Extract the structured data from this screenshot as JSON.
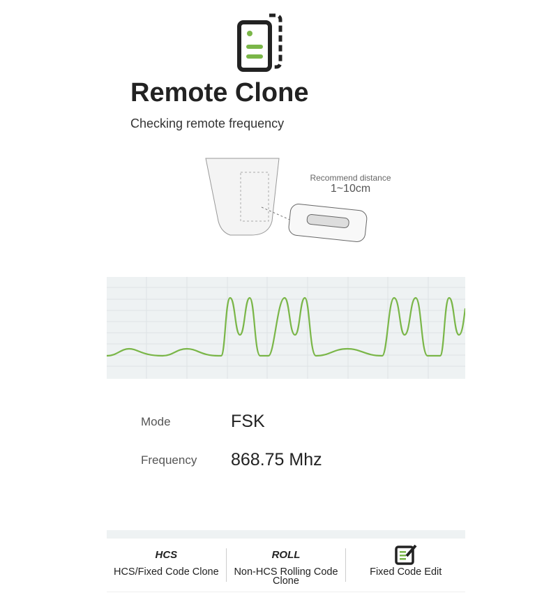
{
  "header": {
    "title": "Remote Clone",
    "subtitle": "Checking remote frequency",
    "icon": "remote-clone-icon"
  },
  "illustration": {
    "recommend_label": "Recommend distance",
    "distance": "1~10cm"
  },
  "signal": {
    "color": "#7ab648"
  },
  "info": {
    "mode_label": "Mode",
    "mode_value": "FSK",
    "frequency_label": "Frequency",
    "frequency_value": "868.75 Mhz"
  },
  "tabs": [
    {
      "icon_text": "HCS",
      "label": "HCS/Fixed Code Clone"
    },
    {
      "icon_text": "ROLL",
      "label": "Non-HCS Rolling Code Clone"
    },
    {
      "icon": "edit-icon",
      "label": "Fixed Code Edit"
    }
  ],
  "colors": {
    "accent": "#7ab648",
    "text": "#222222"
  }
}
